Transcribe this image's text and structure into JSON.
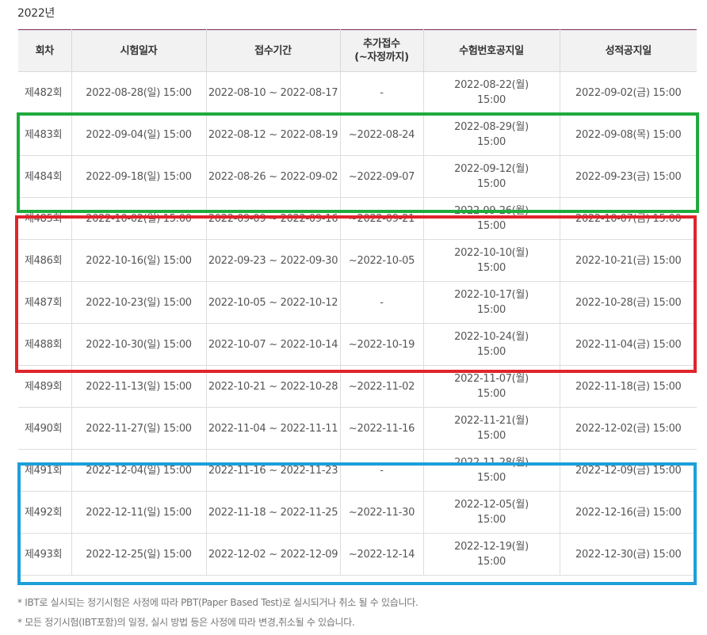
{
  "year_title": "2022년",
  "headers": {
    "round": "회차",
    "exam_date": "시험일자",
    "reg_period": "접수기간",
    "extra_reg_line1": "추가접수",
    "extra_reg_line2": "(~자정까지)",
    "id_notice": "수험번호공지일",
    "score_notice": "성적공지일"
  },
  "rows": [
    {
      "round": "제482회",
      "exam_date": "2022-08-28(일) 15:00",
      "reg_period": "2022-08-10 ~ 2022-08-17",
      "extra": "-",
      "id_date": "2022-08-22(월)",
      "id_time": "15:00",
      "score_date": "2022-09-02(금) 15:00"
    },
    {
      "round": "제483회",
      "exam_date": "2022-09-04(일) 15:00",
      "reg_period": "2022-08-12 ~ 2022-08-19",
      "extra": "~2022-08-24",
      "id_date": "2022-08-29(월)",
      "id_time": "15:00",
      "score_date": "2022-09-08(목) 15:00"
    },
    {
      "round": "제484회",
      "exam_date": "2022-09-18(일) 15:00",
      "reg_period": "2022-08-26 ~ 2022-09-02",
      "extra": "~2022-09-07",
      "id_date": "2022-09-12(월)",
      "id_time": "15:00",
      "score_date": "2022-09-23(금) 15:00"
    },
    {
      "round": "제485회",
      "exam_date": "2022-10-02(일) 15:00",
      "reg_period": "2022-09-09 ~ 2022-09-16",
      "extra": "~2022-09-21",
      "id_date": "2022-09-26(월)",
      "id_time": "15:00",
      "score_date": "2022-10-07(금) 15:00"
    },
    {
      "round": "제486회",
      "exam_date": "2022-10-16(일) 15:00",
      "reg_period": "2022-09-23 ~ 2022-09-30",
      "extra": "~2022-10-05",
      "id_date": "2022-10-10(월)",
      "id_time": "15:00",
      "score_date": "2022-10-21(금) 15:00"
    },
    {
      "round": "제487회",
      "exam_date": "2022-10-23(일) 15:00",
      "reg_period": "2022-10-05 ~ 2022-10-12",
      "extra": "-",
      "id_date": "2022-10-17(월)",
      "id_time": "15:00",
      "score_date": "2022-10-28(금) 15:00"
    },
    {
      "round": "제488회",
      "exam_date": "2022-10-30(일) 15:00",
      "reg_period": "2022-10-07 ~ 2022-10-14",
      "extra": "~2022-10-19",
      "id_date": "2022-10-24(월)",
      "id_time": "15:00",
      "score_date": "2022-11-04(금) 15:00"
    },
    {
      "round": "제489회",
      "exam_date": "2022-11-13(일) 15:00",
      "reg_period": "2022-10-21 ~ 2022-10-28",
      "extra": "~2022-11-02",
      "id_date": "2022-11-07(월)",
      "id_time": "15:00",
      "score_date": "2022-11-18(금) 15:00"
    },
    {
      "round": "제490회",
      "exam_date": "2022-11-27(일) 15:00",
      "reg_period": "2022-11-04 ~ 2022-11-11",
      "extra": "~2022-11-16",
      "id_date": "2022-11-21(월)",
      "id_time": "15:00",
      "score_date": "2022-12-02(금) 15:00"
    },
    {
      "round": "제491회",
      "exam_date": "2022-12-04(일) 15:00",
      "reg_period": "2022-11-16 ~ 2022-11-23",
      "extra": "-",
      "id_date": "2022-11-28(월)",
      "id_time": "15:00",
      "score_date": "2022-12-09(금) 15:00"
    },
    {
      "round": "제492회",
      "exam_date": "2022-12-11(일) 15:00",
      "reg_period": "2022-11-18 ~ 2022-11-25",
      "extra": "~2022-11-30",
      "id_date": "2022-12-05(월)",
      "id_time": "15:00",
      "score_date": "2022-12-16(금) 15:00"
    },
    {
      "round": "제493회",
      "exam_date": "2022-12-25(일) 15:00",
      "reg_period": "2022-12-02 ~ 2022-12-09",
      "extra": "~2022-12-14",
      "id_date": "2022-12-19(월)",
      "id_time": "15:00",
      "score_date": "2022-12-30(금) 15:00"
    }
  ],
  "highlight_colors": {
    "green": "#1fab3c",
    "red": "#e0252b",
    "blue": "#1d9fd9"
  },
  "notes": [
    "* IBT로 실시되는 정기시험은 사정에 따라 PBT(Paper Based Test)로 실시되거나 취소 될 수 있습니다.",
    "* 모든 정기시험(IBT포함)의 일정, 실시 방법 등은 사정에 따라 변경,취소될 수 있습니다."
  ]
}
